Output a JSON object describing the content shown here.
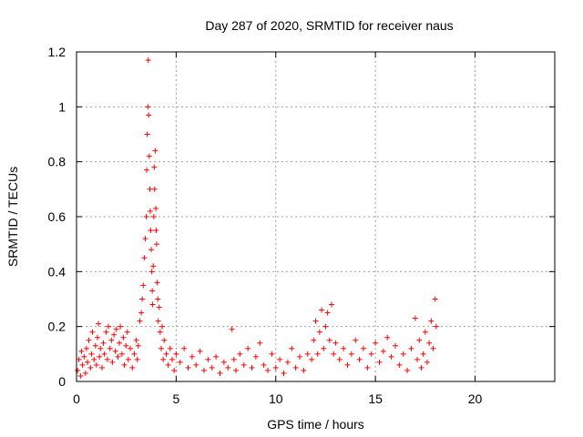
{
  "chart_data": {
    "type": "scatter",
    "title": "Day 287 of 2020, SRMTID for receiver naus",
    "xlabel": "GPS time / hours",
    "ylabel": "SRMTID / TECUs",
    "xlim": [
      0,
      24
    ],
    "ylim": [
      0,
      1.2
    ],
    "xticks": [
      0,
      5,
      10,
      15,
      20
    ],
    "xtick_labels": [
      "0",
      "5",
      "10",
      "15",
      "20"
    ],
    "yticks": [
      0,
      0.2,
      0.4,
      0.6,
      0.8,
      1,
      1.2
    ],
    "ytick_labels": [
      "0",
      "0.2",
      "0.4",
      "0.6",
      "0.8",
      "1",
      "1.2"
    ],
    "grid": true,
    "marker": "+",
    "color": "#ff0000",
    "series": [
      {
        "values": [
          [
            0.05,
            0.04
          ],
          [
            0.12,
            0.08
          ],
          [
            0.2,
            0.02
          ],
          [
            0.25,
            0.11
          ],
          [
            0.3,
            0.06
          ],
          [
            0.38,
            0.09
          ],
          [
            0.45,
            0.03
          ],
          [
            0.5,
            0.12
          ],
          [
            0.55,
            0.07
          ],
          [
            0.62,
            0.15
          ],
          [
            0.7,
            0.05
          ],
          [
            0.75,
            0.1
          ],
          [
            0.8,
            0.18
          ],
          [
            0.88,
            0.08
          ],
          [
            0.95,
            0.13
          ],
          [
            1.0,
            0.06
          ],
          [
            1.05,
            0.16
          ],
          [
            1.1,
            0.21
          ],
          [
            1.15,
            0.09
          ],
          [
            1.2,
            0.12
          ],
          [
            1.28,
            0.05
          ],
          [
            1.35,
            0.14
          ],
          [
            1.4,
            0.1
          ],
          [
            1.48,
            0.18
          ],
          [
            1.55,
            0.08
          ],
          [
            1.6,
            0.2
          ],
          [
            1.68,
            0.12
          ],
          [
            1.75,
            0.15
          ],
          [
            1.8,
            0.07
          ],
          [
            1.88,
            0.17
          ],
          [
            1.95,
            0.11
          ],
          [
            2.0,
            0.19
          ],
          [
            2.08,
            0.09
          ],
          [
            2.15,
            0.14
          ],
          [
            2.2,
            0.2
          ],
          [
            2.28,
            0.1
          ],
          [
            2.35,
            0.16
          ],
          [
            2.4,
            0.06
          ],
          [
            2.48,
            0.13
          ],
          [
            2.55,
            0.18
          ],
          [
            2.6,
            0.08
          ],
          [
            2.7,
            0.12
          ],
          [
            2.8,
            0.05
          ],
          [
            2.9,
            0.1
          ],
          [
            3.0,
            0.15
          ],
          [
            3.05,
            0.08
          ],
          [
            3.1,
            0.13
          ],
          [
            3.18,
            0.22
          ],
          [
            3.25,
            0.25
          ],
          [
            3.3,
            0.3
          ],
          [
            3.35,
            0.35
          ],
          [
            3.4,
            0.45
          ],
          [
            3.45,
            0.52
          ],
          [
            3.5,
            0.6
          ],
          [
            3.52,
            0.77
          ],
          [
            3.55,
            0.9
          ],
          [
            3.58,
            1.0
          ],
          [
            3.6,
            1.17
          ],
          [
            3.62,
            0.97
          ],
          [
            3.65,
            0.82
          ],
          [
            3.68,
            0.7
          ],
          [
            3.7,
            0.62
          ],
          [
            3.72,
            0.55
          ],
          [
            3.75,
            0.48
          ],
          [
            3.78,
            0.4
          ],
          [
            3.8,
            0.33
          ],
          [
            3.82,
            0.28
          ],
          [
            3.85,
            0.42
          ],
          [
            3.88,
            0.6
          ],
          [
            3.9,
            0.78
          ],
          [
            3.92,
            0.7
          ],
          [
            3.95,
            0.84
          ],
          [
            3.98,
            0.63
          ],
          [
            4.0,
            0.55
          ],
          [
            4.02,
            0.5
          ],
          [
            4.05,
            0.36
          ],
          [
            4.08,
            0.3
          ],
          [
            4.1,
            0.22
          ],
          [
            4.15,
            0.27
          ],
          [
            4.2,
            0.18
          ],
          [
            4.25,
            0.12
          ],
          [
            4.3,
            0.2
          ],
          [
            4.35,
            0.08
          ],
          [
            4.4,
            0.15
          ],
          [
            4.5,
            0.1
          ],
          [
            4.6,
            0.06
          ],
          [
            4.7,
            0.12
          ],
          [
            4.8,
            0.08
          ],
          [
            4.9,
            0.04
          ],
          [
            5.0,
            0.1
          ],
          [
            5.2,
            0.07
          ],
          [
            5.4,
            0.12
          ],
          [
            5.6,
            0.05
          ],
          [
            5.8,
            0.09
          ],
          [
            6.0,
            0.06
          ],
          [
            6.2,
            0.11
          ],
          [
            6.4,
            0.04
          ],
          [
            6.6,
            0.08
          ],
          [
            6.8,
            0.05
          ],
          [
            7.0,
            0.09
          ],
          [
            7.2,
            0.03
          ],
          [
            7.4,
            0.07
          ],
          [
            7.6,
            0.05
          ],
          [
            7.8,
            0.19
          ],
          [
            7.9,
            0.08
          ],
          [
            8.0,
            0.04
          ],
          [
            8.2,
            0.1
          ],
          [
            8.4,
            0.06
          ],
          [
            8.6,
            0.12
          ],
          [
            8.8,
            0.05
          ],
          [
            9.0,
            0.09
          ],
          [
            9.2,
            0.14
          ],
          [
            9.4,
            0.06
          ],
          [
            9.6,
            0.04
          ],
          [
            9.8,
            0.1
          ],
          [
            10.0,
            0.05
          ],
          [
            10.2,
            0.08
          ],
          [
            10.4,
            0.03
          ],
          [
            10.6,
            0.07
          ],
          [
            10.8,
            0.12
          ],
          [
            11.0,
            0.05
          ],
          [
            11.2,
            0.09
          ],
          [
            11.4,
            0.04
          ],
          [
            11.6,
            0.1
          ],
          [
            11.8,
            0.08
          ],
          [
            11.9,
            0.15
          ],
          [
            12.0,
            0.22
          ],
          [
            12.1,
            0.1
          ],
          [
            12.2,
            0.18
          ],
          [
            12.3,
            0.26
          ],
          [
            12.4,
            0.12
          ],
          [
            12.5,
            0.2
          ],
          [
            12.6,
            0.25
          ],
          [
            12.7,
            0.15
          ],
          [
            12.8,
            0.28
          ],
          [
            12.9,
            0.1
          ],
          [
            13.0,
            0.14
          ],
          [
            13.2,
            0.08
          ],
          [
            13.4,
            0.12
          ],
          [
            13.6,
            0.06
          ],
          [
            13.8,
            0.1
          ],
          [
            14.0,
            0.15
          ],
          [
            14.2,
            0.08
          ],
          [
            14.4,
            0.12
          ],
          [
            14.6,
            0.05
          ],
          [
            14.8,
            0.1
          ],
          [
            15.0,
            0.14
          ],
          [
            15.2,
            0.07
          ],
          [
            15.4,
            0.11
          ],
          [
            15.6,
            0.16
          ],
          [
            15.8,
            0.09
          ],
          [
            16.0,
            0.13
          ],
          [
            16.2,
            0.06
          ],
          [
            16.4,
            0.1
          ],
          [
            16.6,
            0.04
          ],
          [
            16.8,
            0.12
          ],
          [
            17.0,
            0.23
          ],
          [
            17.1,
            0.08
          ],
          [
            17.2,
            0.15
          ],
          [
            17.3,
            0.05
          ],
          [
            17.4,
            0.1
          ],
          [
            17.5,
            0.18
          ],
          [
            17.6,
            0.07
          ],
          [
            17.7,
            0.14
          ],
          [
            17.8,
            0.22
          ],
          [
            17.9,
            0.12
          ],
          [
            18.0,
            0.3
          ],
          [
            18.05,
            0.2
          ]
        ]
      }
    ]
  }
}
